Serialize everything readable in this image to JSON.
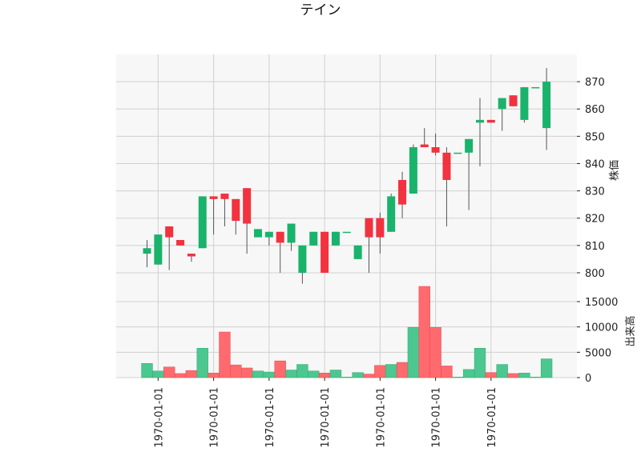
{
  "chart_data": {
    "type": "candlestick",
    "title": "テイン",
    "price_panel": {
      "ylabel": "株価",
      "ylim": [
        795,
        880
      ],
      "yticks": [
        800,
        810,
        820,
        830,
        840,
        850,
        860,
        870
      ],
      "grid": true,
      "y_axis_side": "right"
    },
    "volume_panel": {
      "ylabel": "出来高",
      "ylim": [
        0,
        18000
      ],
      "yticks": [
        0,
        5000,
        10000,
        15000
      ],
      "yticklabels": [
        "0",
        "5000",
        "10000",
        "15000"
      ],
      "grid": true,
      "y_axis_side": "right"
    },
    "x_tick_labels": [
      "1970-01-01",
      "1970-01-01",
      "1970-01-01",
      "1970-01-01",
      "1970-01-01",
      "1970-01-01",
      "1970-01-01"
    ],
    "x_tick_positions": [
      1,
      6,
      11,
      16,
      21,
      26,
      31
    ],
    "colors": {
      "up": "#19b36b",
      "down": "#f2323f",
      "volume_up": "#4cc790",
      "volume_down": "#ff6a6e"
    },
    "candles": [
      {
        "open": 807,
        "high": 812,
        "low": 802,
        "close": 809,
        "volume": 2800
      },
      {
        "open": 803,
        "high": 814,
        "low": 803,
        "close": 814,
        "volume": 1300
      },
      {
        "open": 817,
        "high": 817,
        "low": 801,
        "close": 813,
        "volume": 2100
      },
      {
        "open": 812,
        "high": 812,
        "low": 810,
        "close": 810,
        "volume": 800
      },
      {
        "open": 807,
        "high": 807,
        "low": 804,
        "close": 806,
        "volume": 1400
      },
      {
        "open": 809,
        "high": 828,
        "low": 809,
        "close": 828,
        "volume": 5800
      },
      {
        "open": 828,
        "high": 828,
        "low": 814,
        "close": 827,
        "volume": 900
      },
      {
        "open": 829,
        "high": 829,
        "low": 817,
        "close": 827,
        "volume": 9000
      },
      {
        "open": 827,
        "high": 827,
        "low": 814,
        "close": 819,
        "volume": 2500
      },
      {
        "open": 831,
        "high": 831,
        "low": 807,
        "close": 818,
        "volume": 1900
      },
      {
        "open": 813,
        "high": 816,
        "low": 813,
        "close": 816,
        "volume": 1300
      },
      {
        "open": 813,
        "high": 815,
        "low": 810,
        "close": 815,
        "volume": 1100
      },
      {
        "open": 815,
        "high": 815,
        "low": 800,
        "close": 811,
        "volume": 3300
      },
      {
        "open": 811,
        "high": 818,
        "low": 808,
        "close": 818,
        "volume": 1500
      },
      {
        "open": 800,
        "high": 810,
        "low": 796,
        "close": 810,
        "volume": 2600
      },
      {
        "open": 810,
        "high": 815,
        "low": 810,
        "close": 815,
        "volume": 1300
      },
      {
        "open": 815,
        "high": 815,
        "low": 800,
        "close": 800,
        "volume": 900
      },
      {
        "open": 810,
        "high": 815,
        "low": 810,
        "close": 815,
        "volume": 1500
      },
      {
        "open": 815,
        "high": 815,
        "low": 815,
        "close": 815,
        "volume": 100
      },
      {
        "open": 805,
        "high": 810,
        "low": 805,
        "close": 810,
        "volume": 1000
      },
      {
        "open": 820,
        "high": 820,
        "low": 800,
        "close": 813,
        "volume": 700
      },
      {
        "open": 820,
        "high": 822,
        "low": 807,
        "close": 813,
        "volume": 2400
      },
      {
        "open": 815,
        "high": 829,
        "low": 815,
        "close": 828,
        "volume": 2600
      },
      {
        "open": 834,
        "high": 837,
        "low": 820,
        "close": 825,
        "volume": 3000
      },
      {
        "open": 829,
        "high": 847,
        "low": 829,
        "close": 846,
        "volume": 9900
      },
      {
        "open": 847,
        "high": 853,
        "low": 846,
        "close": 846,
        "volume": 18000
      },
      {
        "open": 846,
        "high": 851,
        "low": 843,
        "close": 844,
        "volume": 9900
      },
      {
        "open": 844,
        "high": 846,
        "low": 817,
        "close": 834,
        "volume": 2300
      },
      {
        "open": 844,
        "high": 844,
        "low": 844,
        "close": 844,
        "volume": 100
      },
      {
        "open": 844,
        "high": 849,
        "low": 823,
        "close": 849,
        "volume": 1600
      },
      {
        "open": 855,
        "high": 864,
        "low": 839,
        "close": 856,
        "volume": 5800
      },
      {
        "open": 856,
        "high": 856,
        "low": 855,
        "close": 855,
        "volume": 1000
      },
      {
        "open": 860,
        "high": 864,
        "low": 852,
        "close": 864,
        "volume": 2600
      },
      {
        "open": 865,
        "high": 865,
        "low": 861,
        "close": 861,
        "volume": 800
      },
      {
        "open": 856,
        "high": 868,
        "low": 855,
        "close": 868,
        "volume": 900
      },
      {
        "open": 868,
        "high": 868,
        "low": 868,
        "close": 868,
        "volume": 100
      },
      {
        "open": 853,
        "high": 875,
        "low": 845,
        "close": 870,
        "volume": 3700
      }
    ]
  }
}
